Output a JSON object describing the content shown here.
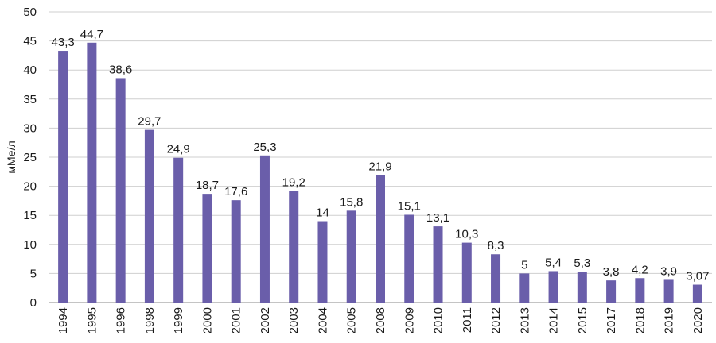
{
  "chart_data": {
    "type": "bar",
    "categories": [
      "1994",
      "1995",
      "1996",
      "1998",
      "1999",
      "2000",
      "2001",
      "2002",
      "2003",
      "2004",
      "2005",
      "2008",
      "2009",
      "2010",
      "2011",
      "2012",
      "2013",
      "2014",
      "2015",
      "2017",
      "2018",
      "2019",
      "2020"
    ],
    "values": [
      43.3,
      44.7,
      38.6,
      29.7,
      24.9,
      18.7,
      17.6,
      25.3,
      19.2,
      14,
      15.8,
      21.9,
      15.1,
      13.1,
      10.3,
      8.3,
      5,
      5.4,
      5.3,
      3.8,
      4.2,
      3.9,
      3.07
    ],
    "value_labels": [
      "43,3",
      "44,7",
      "38,6",
      "29,7",
      "24,9",
      "18,7",
      "17,6",
      "25,3",
      "19,2",
      "14",
      "15,8",
      "21,9",
      "15,1",
      "13,1",
      "10,3",
      "8,3",
      "5",
      "5,4",
      "5,3",
      "3,8",
      "4,2",
      "3,9",
      "3,07"
    ],
    "ylabel": "мМе/л",
    "ylim": [
      0,
      50
    ],
    "yticks": [
      0,
      5,
      10,
      15,
      20,
      25,
      30,
      35,
      40,
      45,
      50
    ],
    "grid": true,
    "bar_color": "#6a5eaa",
    "grid_color": "#cfcfcf"
  }
}
